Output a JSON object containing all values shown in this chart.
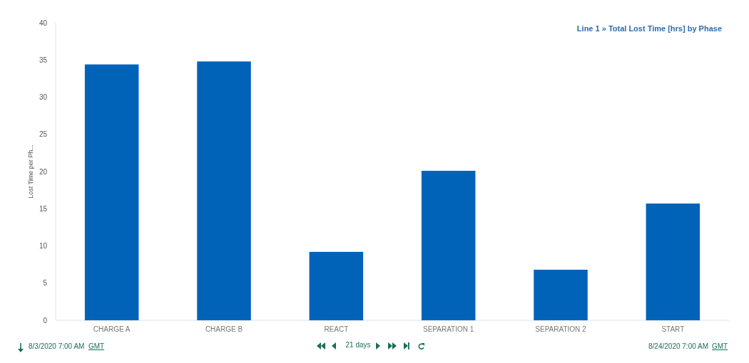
{
  "chart_data": {
    "type": "bar",
    "title": "Line 1 » Total Lost Time [hrs] by Phase",
    "ylabel": "Lost Time per Ph...",
    "categories": [
      "CHARGE A",
      "CHARGE B",
      "REACT",
      "SEPARATION 1",
      "SEPARATION 2",
      "START"
    ],
    "values": [
      34.4,
      34.8,
      9.2,
      20.1,
      6.8,
      15.7
    ],
    "color": "#0063b8",
    "ylim": [
      0,
      40
    ],
    "yticks": [
      0,
      5,
      10,
      15,
      20,
      25,
      30,
      35,
      40
    ],
    "grid": false,
    "annotations": [
      "8/3/2020 7:00 AM",
      "GMT",
      "21 days",
      "8/24/2020 7:00 AM",
      "GMT"
    ]
  }
}
